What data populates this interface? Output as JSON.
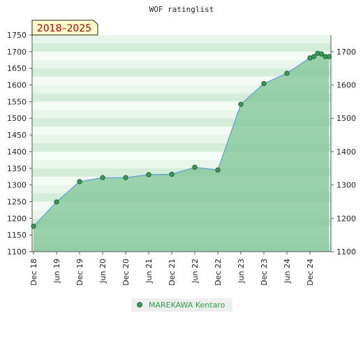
{
  "chart_data": {
    "type": "line",
    "title": "WOF ratinglist",
    "badge": "2018–2025",
    "xlabel": "",
    "ylabel": "",
    "x_ticks": [
      "Dec 18",
      "Jun 19",
      "Dec 19",
      "Jun 20",
      "Dec 20",
      "Jun 21",
      "Dec 21",
      "Jun 22",
      "Dec 22",
      "Jun 23",
      "Dec 23",
      "Jun 24",
      "Dec 24"
    ],
    "ylim_left": [
      1100,
      1750
    ],
    "ylim_right": [
      1100,
      1750
    ],
    "yticks_left": [
      1100,
      1150,
      1200,
      1250,
      1300,
      1350,
      1400,
      1450,
      1500,
      1550,
      1600,
      1650,
      1700,
      1750
    ],
    "yticks_right": [
      1100,
      1200,
      1300,
      1400,
      1500,
      1600,
      1700
    ],
    "legend_position": "bottom",
    "grid": "horizontal bands",
    "colors": {
      "line": "#5b9bd5",
      "area": "#7cc494",
      "marker": "#3a9a55",
      "badge_bg": "#ffffcc",
      "badge_text": "#990000",
      "legend_text": "#2e9b4c"
    },
    "series": [
      {
        "name": "MAREKAWA Kentaro",
        "points": [
          {
            "x": "2018-12",
            "y": 1176
          },
          {
            "x": "2019-06",
            "y": 1249
          },
          {
            "x": "2019-12",
            "y": 1310
          },
          {
            "x": "2020-06",
            "y": 1322
          },
          {
            "x": "2020-12",
            "y": 1322
          },
          {
            "x": "2021-06",
            "y": 1331
          },
          {
            "x": "2021-12",
            "y": 1332
          },
          {
            "x": "2022-06",
            "y": 1353
          },
          {
            "x": "2022-12",
            "y": 1345
          },
          {
            "x": "2023-06",
            "y": 1542
          },
          {
            "x": "2023-12",
            "y": 1604
          },
          {
            "x": "2024-06",
            "y": 1635
          },
          {
            "x": "2024-12",
            "y": 1681
          },
          {
            "x": "2025-01",
            "y": 1685
          },
          {
            "x": "2025-02",
            "y": 1695
          },
          {
            "x": "2025-03",
            "y": 1693
          },
          {
            "x": "2025-04",
            "y": 1685
          },
          {
            "x": "2025-05",
            "y": 1685
          }
        ]
      }
    ]
  }
}
